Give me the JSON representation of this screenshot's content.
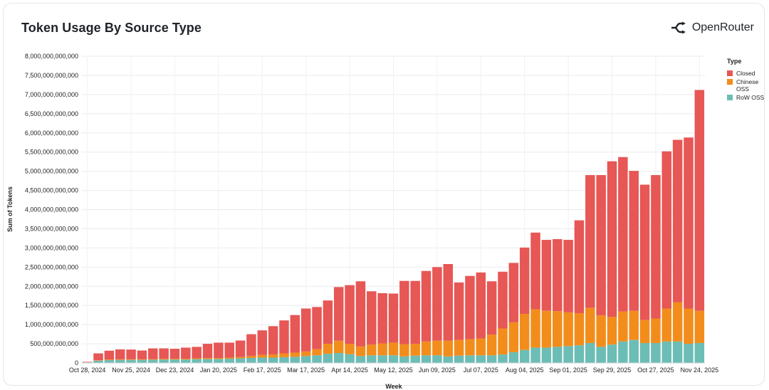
{
  "title": "Token Usage By Source Type",
  "brand": {
    "name": "OpenRouter",
    "icon": "openrouter-logo-icon"
  },
  "chart_data": {
    "type": "bar",
    "stacked": true,
    "xlabel": "Week",
    "ylabel": "Sum of Tokens",
    "ylim": [
      0,
      8000000000000
    ],
    "y_ticks": [
      0,
      500000000000,
      1000000000000,
      1500000000000,
      2000000000000,
      2500000000000,
      3000000000000,
      3500000000000,
      4000000000000,
      4500000000000,
      5000000000000,
      5500000000000,
      6000000000000,
      6500000000000,
      7000000000000,
      7500000000000,
      8000000000000
    ],
    "y_tick_labels": [
      "0",
      "500,000,000,000",
      "1,000,000,000,000",
      "1,500,000,000,000",
      "2,000,000,000,000",
      "2,500,000,000,000",
      "3,000,000,000,000",
      "3,500,000,000,000",
      "4,000,000,000,000",
      "4,500,000,000,000",
      "5,000,000,000,000",
      "5,500,000,000,000",
      "6,000,000,000,000",
      "6,500,000,000,000",
      "7,000,000,000,000",
      "7,500,000,000,000",
      "8,000,000,000,000"
    ],
    "x_tick_labels": [
      {
        "label": "Oct 28, 2024",
        "index": 0
      },
      {
        "label": "Nov 25, 2024",
        "index": 4
      },
      {
        "label": "Dec 23, 2024",
        "index": 8
      },
      {
        "label": "Jan 20, 2025",
        "index": 12
      },
      {
        "label": "Feb 17, 2025",
        "index": 16
      },
      {
        "label": "Mar 17, 2025",
        "index": 20
      },
      {
        "label": "Apr 14, 2025",
        "index": 24
      },
      {
        "label": "May 12, 2025",
        "index": 28
      },
      {
        "label": "Jun 09, 2025",
        "index": 32
      },
      {
        "label": "Jul 07, 2025",
        "index": 36
      },
      {
        "label": "Aug 04, 2025",
        "index": 40
      },
      {
        "label": "Sep 01, 2025",
        "index": 44
      },
      {
        "label": "Sep 29, 2025",
        "index": 48
      },
      {
        "label": "Oct 27, 2025",
        "index": 52
      },
      {
        "label": "Nov 24, 2025",
        "index": 56
      }
    ],
    "legend": {
      "title": "Type",
      "position": "right"
    },
    "grid": true,
    "categories": [
      "Oct 28, 2024",
      "Nov 04, 2024",
      "Nov 11, 2024",
      "Nov 18, 2024",
      "Nov 25, 2024",
      "Dec 02, 2024",
      "Dec 09, 2024",
      "Dec 16, 2024",
      "Dec 23, 2024",
      "Dec 30, 2024",
      "Jan 06, 2025",
      "Jan 13, 2025",
      "Jan 20, 2025",
      "Jan 27, 2025",
      "Feb 03, 2025",
      "Feb 10, 2025",
      "Feb 17, 2025",
      "Feb 24, 2025",
      "Mar 03, 2025",
      "Mar 10, 2025",
      "Mar 17, 2025",
      "Mar 24, 2025",
      "Mar 31, 2025",
      "Apr 07, 2025",
      "Apr 14, 2025",
      "Apr 21, 2025",
      "Apr 28, 2025",
      "May 05, 2025",
      "May 12, 2025",
      "May 19, 2025",
      "May 26, 2025",
      "Jun 02, 2025",
      "Jun 09, 2025",
      "Jun 16, 2025",
      "Jun 23, 2025",
      "Jun 30, 2025",
      "Jul 07, 2025",
      "Jul 14, 2025",
      "Jul 21, 2025",
      "Jul 28, 2025",
      "Aug 04, 2025",
      "Aug 11, 2025",
      "Aug 18, 2025",
      "Aug 25, 2025",
      "Sep 01, 2025",
      "Sep 08, 2025",
      "Sep 15, 2025",
      "Sep 22, 2025",
      "Sep 29, 2025",
      "Oct 06, 2025",
      "Oct 13, 2025",
      "Oct 20, 2025",
      "Oct 27, 2025",
      "Nov 03, 2025",
      "Nov 10, 2025",
      "Nov 17, 2025",
      "Nov 24, 2025"
    ],
    "series": [
      {
        "name": "RoW OSS",
        "color": "#6cbdb5",
        "values": [
          15000000000,
          60000000000,
          75000000000,
          80000000000,
          80000000000,
          80000000000,
          85000000000,
          90000000000,
          90000000000,
          90000000000,
          100000000000,
          100000000000,
          105000000000,
          110000000000,
          120000000000,
          130000000000,
          140000000000,
          140000000000,
          150000000000,
          160000000000,
          180000000000,
          200000000000,
          240000000000,
          260000000000,
          230000000000,
          180000000000,
          200000000000,
          200000000000,
          200000000000,
          170000000000,
          190000000000,
          200000000000,
          200000000000,
          170000000000,
          190000000000,
          200000000000,
          200000000000,
          200000000000,
          220000000000,
          280000000000,
          340000000000,
          400000000000,
          400000000000,
          420000000000,
          440000000000,
          460000000000,
          520000000000,
          420000000000,
          480000000000,
          560000000000,
          600000000000,
          520000000000,
          520000000000,
          560000000000,
          560000000000,
          500000000000,
          520000000000
        ]
      },
      {
        "name": "Chinese OSS",
        "color": "#f28d1c",
        "values": [
          5000000000,
          10000000000,
          15000000000,
          15000000000,
          15000000000,
          15000000000,
          15000000000,
          20000000000,
          20000000000,
          20000000000,
          20000000000,
          25000000000,
          25000000000,
          30000000000,
          35000000000,
          50000000000,
          70000000000,
          80000000000,
          100000000000,
          110000000000,
          120000000000,
          160000000000,
          260000000000,
          320000000000,
          270000000000,
          250000000000,
          280000000000,
          310000000000,
          330000000000,
          320000000000,
          310000000000,
          360000000000,
          380000000000,
          410000000000,
          410000000000,
          420000000000,
          440000000000,
          540000000000,
          680000000000,
          780000000000,
          940000000000,
          1000000000000,
          960000000000,
          930000000000,
          880000000000,
          840000000000,
          920000000000,
          820000000000,
          720000000000,
          780000000000,
          760000000000,
          600000000000,
          640000000000,
          860000000000,
          1020000000000,
          920000000000,
          840000000000
        ]
      },
      {
        "name": "Closed",
        "color": "#e65755",
        "values": [
          10000000000,
          180000000000,
          230000000000,
          260000000000,
          255000000000,
          230000000000,
          280000000000,
          270000000000,
          260000000000,
          290000000000,
          300000000000,
          375000000000,
          400000000000,
          390000000000,
          430000000000,
          570000000000,
          640000000000,
          740000000000,
          860000000000,
          980000000000,
          1120000000000,
          1100000000000,
          1130000000000,
          1400000000000,
          1530000000000,
          1700000000000,
          1390000000000,
          1310000000000,
          1280000000000,
          1650000000000,
          1640000000000,
          1840000000000,
          1920000000000,
          2000000000000,
          1500000000000,
          1650000000000,
          1720000000000,
          1390000000000,
          1480000000000,
          1550000000000,
          1730000000000,
          2000000000000,
          1850000000000,
          1880000000000,
          1890000000000,
          2420000000000,
          3460000000000,
          3660000000000,
          4060000000000,
          4030000000000,
          3650000000000,
          3530000000000,
          3740000000000,
          4100000000000,
          4240000000000,
          4460000000000,
          5760000000000
        ]
      }
    ]
  }
}
